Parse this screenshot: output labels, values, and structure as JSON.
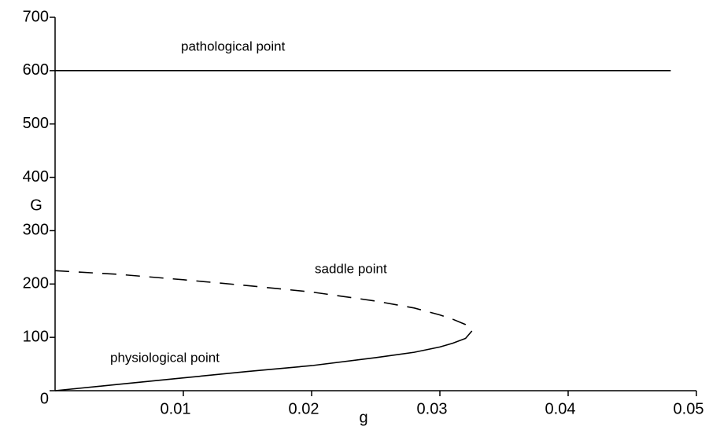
{
  "chart_data": {
    "type": "line",
    "x_label": "g",
    "y_label": "G",
    "xlim": [
      0,
      0.05
    ],
    "ylim": [
      0,
      700
    ],
    "xticks": [
      0.01,
      0.02,
      0.03,
      0.04,
      0.05
    ],
    "yticks": [
      0,
      100,
      200,
      300,
      400,
      500,
      600,
      700
    ],
    "series": [
      {
        "name": "pathological point",
        "color": "#000000",
        "dash": false,
        "x": [
          0,
          0.048
        ],
        "values": [
          600,
          600
        ]
      },
      {
        "name": "saddle point",
        "color": "#000000",
        "dash": true,
        "x": [
          0,
          0.005,
          0.01,
          0.015,
          0.02,
          0.025,
          0.028,
          0.03,
          0.031,
          0.032,
          0.0325
        ],
        "values": [
          225,
          218,
          208,
          197,
          185,
          168,
          155,
          142,
          134,
          124,
          112
        ]
      },
      {
        "name": "physiological point",
        "color": "#000000",
        "dash": false,
        "x": [
          0,
          0.005,
          0.01,
          0.015,
          0.02,
          0.025,
          0.028,
          0.03,
          0.031,
          0.032,
          0.0325
        ],
        "values": [
          0,
          12,
          24,
          36,
          47,
          62,
          72,
          82,
          89,
          98,
          112
        ]
      }
    ]
  }
}
